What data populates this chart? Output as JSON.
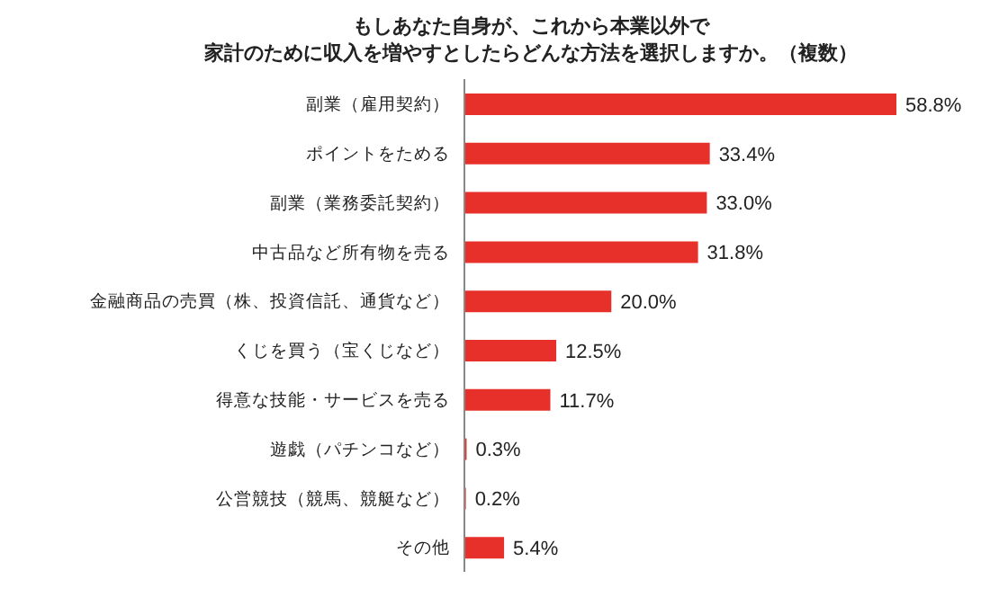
{
  "chart_data": {
    "type": "bar",
    "orientation": "horizontal",
    "title": "もしあなた自身が、これから本業以外で",
    "subtitle": "家計のために収入を増やすとしたらどんな方法を選択しますか。（複数）",
    "categories": [
      "副業（雇用契約）",
      "ポイントをためる",
      "副業（業務委託契約）",
      "中古品など所有物を売る",
      "金融商品の売買（株、投資信託、通貨など）",
      "くじを買う（宝くじなど）",
      "得意な技能・サービスを売る",
      "遊戯（パチンコなど）",
      "公営競技（競馬、競艇など）",
      "その他"
    ],
    "values": [
      58.8,
      33.4,
      33.0,
      31.8,
      20.0,
      12.5,
      11.7,
      0.3,
      0.2,
      5.4
    ],
    "value_labels": [
      "58.8%",
      "33.4%",
      "33.0%",
      "31.8%",
      "20.0%",
      "12.5%",
      "11.7%",
      "0.3%",
      "0.2%",
      "5.4%"
    ],
    "color": "#e8302a"
  }
}
